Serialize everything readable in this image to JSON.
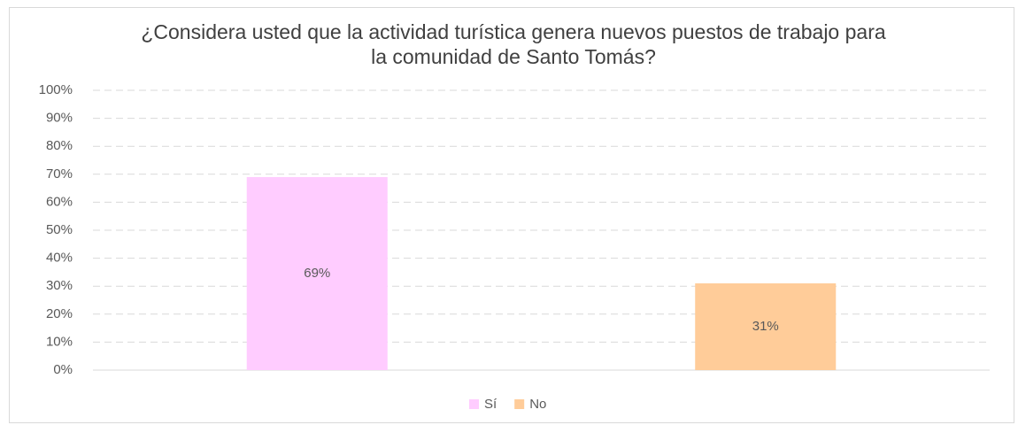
{
  "chart_data": {
    "type": "bar",
    "title": "¿Considera usted que la actividad turística genera nuevos puestos de trabajo para la comunidad de Santo Tomás?",
    "categories": [
      null
    ],
    "series": [
      {
        "name": "Sí",
        "color": "#ffccff",
        "values": [
          69
        ],
        "value_labels": [
          "69%"
        ]
      },
      {
        "name": "No",
        "color": "#ffcc99",
        "values": [
          31
        ],
        "value_labels": [
          "31%"
        ]
      }
    ],
    "ylim": [
      0,
      100
    ],
    "yticks": [
      {
        "value": 0,
        "label": "0%"
      },
      {
        "value": 10,
        "label": "10%"
      },
      {
        "value": 20,
        "label": "20%"
      },
      {
        "value": 30,
        "label": "30%"
      },
      {
        "value": 40,
        "label": "40%"
      },
      {
        "value": 50,
        "label": "50%"
      },
      {
        "value": 60,
        "label": "60%"
      },
      {
        "value": 70,
        "label": "70%"
      },
      {
        "value": 80,
        "label": "80%"
      },
      {
        "value": 90,
        "label": "90%"
      },
      {
        "value": 100,
        "label": "100%"
      }
    ],
    "grid": true,
    "legend": "bottom"
  }
}
